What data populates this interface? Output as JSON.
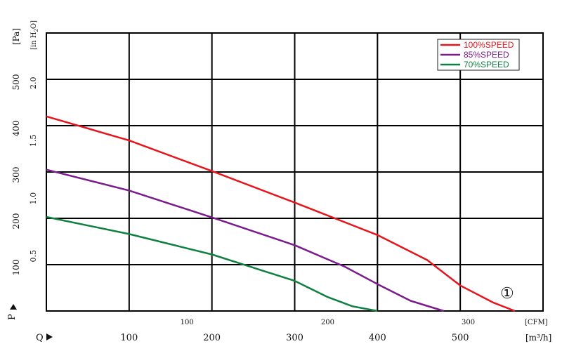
{
  "chart_data": {
    "type": "line",
    "y_units": {
      "primary": "[Pa]",
      "secondary": "[in H2O]",
      "secondary_sub": "2",
      "secondary_tail": "O]"
    },
    "x_units": {
      "cfm": "[CFM]",
      "m3h": "[m³/h]"
    },
    "p_label": "P",
    "q_label": "Q",
    "curve_marker": "①",
    "x_range_m3h": [
      0,
      600
    ],
    "y_range_pa": [
      0,
      600
    ],
    "pa_ticks": [
      "100",
      "200",
      "300",
      "400",
      "500"
    ],
    "inh2o_ticks": [
      "0.5",
      "1.0",
      "1.5",
      "2.0"
    ],
    "cfm_ticks": [
      "100",
      "200",
      "300"
    ],
    "m3h_ticks": [
      "100",
      "200",
      "300",
      "400",
      "500"
    ],
    "grid": true,
    "legend_position": "top-right",
    "series": [
      {
        "name": "100%SPEED",
        "color": "#e8141c",
        "points": [
          [
            0,
            420
          ],
          [
            100,
            368
          ],
          [
            200,
            302
          ],
          [
            300,
            234
          ],
          [
            400,
            164
          ],
          [
            460,
            110
          ],
          [
            500,
            55
          ],
          [
            540,
            18
          ],
          [
            566,
            0
          ]
        ]
      },
      {
        "name": "85%SPEED",
        "color": "#7a1c8c",
        "points": [
          [
            0,
            305
          ],
          [
            100,
            260
          ],
          [
            200,
            202
          ],
          [
            300,
            142
          ],
          [
            360,
            96
          ],
          [
            400,
            58
          ],
          [
            440,
            22
          ],
          [
            480,
            0
          ]
        ]
      },
      {
        "name": "70%SPEED",
        "color": "#108040",
        "points": [
          [
            0,
            203
          ],
          [
            100,
            166
          ],
          [
            200,
            122
          ],
          [
            300,
            65
          ],
          [
            340,
            30
          ],
          [
            370,
            10
          ],
          [
            400,
            0
          ]
        ]
      }
    ]
  }
}
